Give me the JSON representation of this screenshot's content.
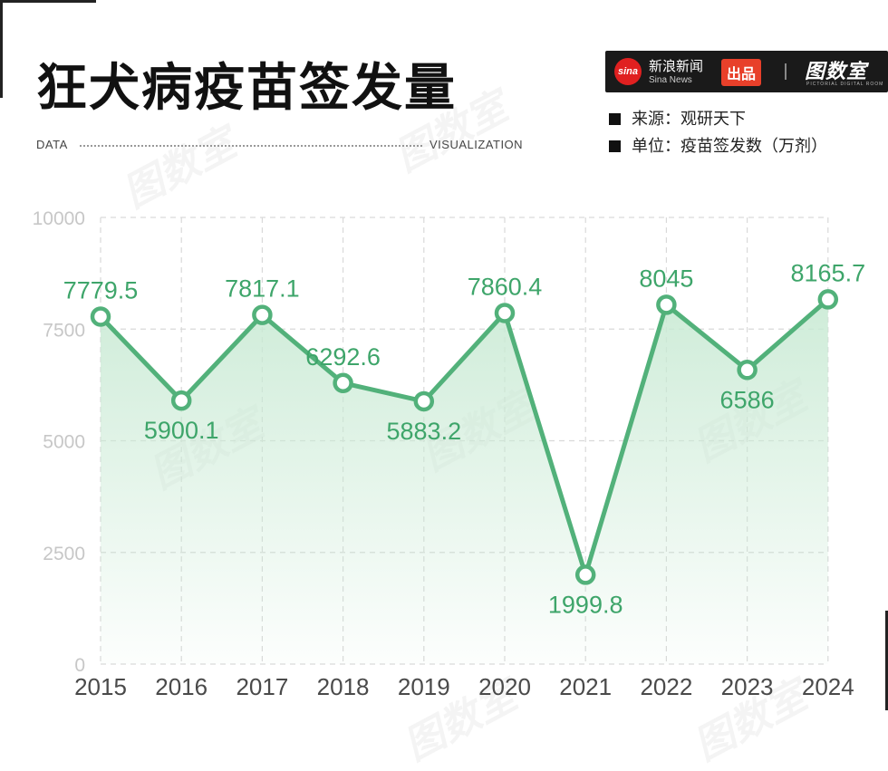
{
  "title": "狂犬病疫苗签发量",
  "header": {
    "left_label": "DATA",
    "right_label": "VISUALIZATION"
  },
  "badge": {
    "logo_text": "sina",
    "cn": "新浪新闻",
    "en": "Sina News",
    "chupin": "出品",
    "brand": "图数室",
    "brand_sub": "PICTORIAL DIGITAL ROOM"
  },
  "meta": {
    "source": "来源：观研天下",
    "unit": "单位：疫苗签发数（万剂）"
  },
  "watermark": "图数室",
  "colors": {
    "line": "#52b17a",
    "marker_fill": "#ffffff",
    "label": "#3ea56a",
    "area_top": "#c9ead4",
    "grid": "#d9d9d9",
    "tick": "#c7c7c7",
    "xtick": "#4a4a4a",
    "badge_bg": "#1a1a1a",
    "chupin_bg": "#e8402a"
  },
  "chart_data": {
    "type": "line",
    "x": [
      "2015",
      "2016",
      "2017",
      "2018",
      "2019",
      "2020",
      "2021",
      "2022",
      "2023",
      "2024"
    ],
    "series": [
      {
        "values": [
          7779.5,
          5900.1,
          7817.1,
          6292.6,
          5883.2,
          7860.4,
          1999.8,
          8045,
          6586,
          8165.7
        ]
      }
    ],
    "data_labels": [
      "7779.5",
      "5900.1",
      "7817.1",
      "6292.6",
      "5883.2",
      "7860.4",
      "1999.8",
      "8045",
      "6586",
      "8165.7"
    ],
    "y_ticks": [
      "0",
      "2500",
      "5000",
      "7500",
      "10000"
    ],
    "ylim": [
      0,
      10000
    ],
    "grid": true,
    "area_fill": true
  }
}
